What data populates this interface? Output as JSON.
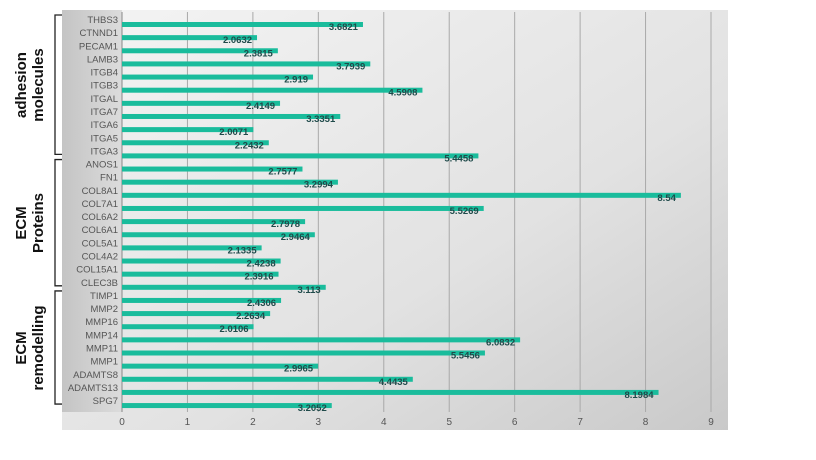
{
  "chart_data": {
    "type": "bar",
    "orientation": "horizontal",
    "title": "",
    "xlabel": "",
    "ylabel": "",
    "xlim": [
      0,
      9
    ],
    "x_ticks": [
      "0",
      "1",
      "2",
      "3",
      "4",
      "5",
      "6",
      "7",
      "8",
      "9"
    ],
    "grid": "vertical",
    "bar_color": "#1ABC9C",
    "label_color": "#1F4A4A",
    "categories": [
      "THBS3",
      "CTNND1",
      "PECAM1",
      "LAMB3",
      "ITGB4",
      "ITGB3",
      "ITGAL",
      "ITGA7",
      "ITGA6",
      "ITGA5",
      "ITGA3",
      "ANOS1",
      "FN1",
      "COL8A1",
      "COL7A1",
      "COL6A2",
      "COL6A1",
      "COL5A1",
      "COL4A2",
      "COL15A1",
      "CLEC3B",
      "TIMP1",
      "MMP2",
      "MMP16",
      "MMP14",
      "MMP11",
      "MMP1",
      "ADAMTS8",
      "ADAMTS13",
      "SPG7"
    ],
    "values": [
      3.6821,
      2.0632,
      2.3815,
      3.7939,
      2.919,
      4.5908,
      2.4149,
      3.3351,
      2.0071,
      2.2432,
      5.4458,
      2.7577,
      3.2994,
      8.54,
      5.5269,
      2.7978,
      2.9464,
      2.1335,
      2.4238,
      2.3916,
      3.113,
      2.4306,
      2.2634,
      2.0106,
      6.0832,
      5.5456,
      2.9965,
      4.4435,
      8.1984,
      3.2052
    ],
    "value_labels": [
      "3.6821",
      "2.0632",
      "2.3815",
      "3.7939",
      "2.919",
      "4.5908",
      "2.4149",
      "3.3351",
      "2.0071",
      "2.2432",
      "5.4458",
      "2.7577",
      "3.2994",
      "8.54",
      "5.5269",
      "2.7978",
      "2.9464",
      "2.1335",
      "2.4238",
      "2.3916",
      "3.113",
      "2.4306",
      "2.2634",
      "2.0106",
      "6.0832",
      "5.5456",
      "2.9965",
      "4.4435",
      "8.1984",
      "3.2052"
    ],
    "groups": [
      {
        "lines": [
          "adhesion",
          "molecules"
        ],
        "first": "THBS3",
        "last": "ITGA3"
      },
      {
        "lines": [
          "ECM",
          "Proteins"
        ],
        "first": "ANOS1",
        "last": "CLEC3B"
      },
      {
        "lines": [
          "ECM",
          "remodelling"
        ],
        "first": "TIMP1",
        "last": "SPG7"
      }
    ]
  }
}
